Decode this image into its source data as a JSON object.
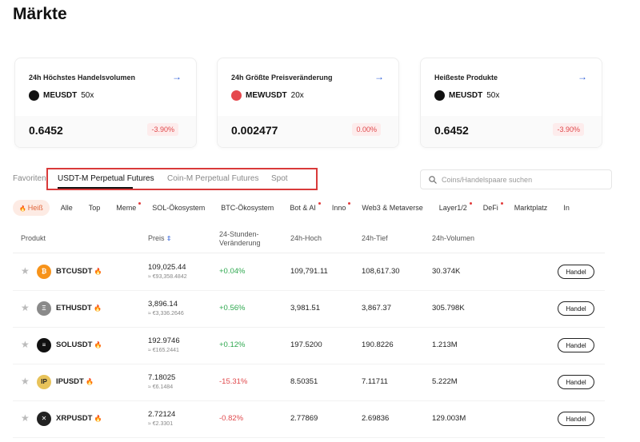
{
  "header": {
    "title": "Märkte"
  },
  "cards": [
    {
      "title": "24h Höchstes Handelsvolumen",
      "symbol": "MEUSDT",
      "leverage": "50x",
      "price": "0.6452",
      "change": "-3.90%"
    },
    {
      "title": "24h Größte Preisveränderung",
      "symbol": "MEWUSDT",
      "leverage": "20x",
      "price": "0.002477",
      "change": "0.00%"
    },
    {
      "title": "Heißeste Produkte",
      "symbol": "MEUSDT",
      "leverage": "50x",
      "price": "0.6452",
      "change": "-3.90%"
    }
  ],
  "tabs": {
    "favorites": "Favoriten",
    "items": [
      "USDT-M Perpetual Futures",
      "Coin-M Perpetual Futures",
      "Spot"
    ]
  },
  "search": {
    "placeholder": "Coins/Handelspaare suchen"
  },
  "filters": [
    "Heiß",
    "Alle",
    "Top",
    "Meme",
    "SOL-Ökosystem",
    "BTC-Ökosystem",
    "Bot & AI",
    "Inno",
    "Web3 & Metaverse",
    "Layer1/2",
    "DeFi",
    "Marktplatz",
    "In"
  ],
  "table": {
    "columns": [
      "Produkt",
      "Preis",
      "24-Stunden-Veränderung",
      "24h-Hoch",
      "24h-Tief",
      "24h-Volumen"
    ],
    "rows": [
      {
        "symbol": "BTCUSDT",
        "price": "109,025.44",
        "price_eur": "≈ €93,358.4842",
        "change": "+0.04%",
        "high": "109,791.11",
        "low": "108,617.30",
        "volume": "30.374K",
        "action": "Handel"
      },
      {
        "symbol": "ETHUSDT",
        "price": "3,896.14",
        "price_eur": "≈ €3,336.2646",
        "change": "+0.56%",
        "high": "3,981.51",
        "low": "3,867.37",
        "volume": "305.798K",
        "action": "Handel"
      },
      {
        "symbol": "SOLUSDT",
        "price": "192.9746",
        "price_eur": "≈ €165.2441",
        "change": "+0.12%",
        "high": "197.5200",
        "low": "190.8226",
        "volume": "1.213M",
        "action": "Handel"
      },
      {
        "symbol": "IPUSDT",
        "price": "7.18025",
        "price_eur": "≈ €6.1484",
        "change": "-15.31%",
        "high": "8.50351",
        "low": "7.11711",
        "volume": "5.222M",
        "action": "Handel"
      },
      {
        "symbol": "XRPUSDT",
        "price": "2.72124",
        "price_eur": "≈ €2.3301",
        "change": "-0.82%",
        "high": "2.77869",
        "low": "2.69836",
        "volume": "129.003M",
        "action": "Handel"
      }
    ]
  }
}
